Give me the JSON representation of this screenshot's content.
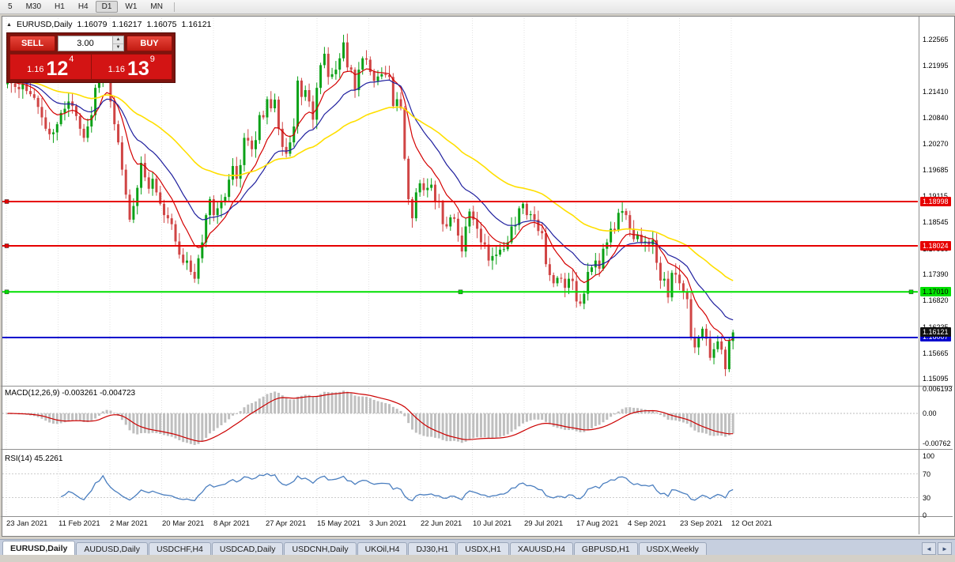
{
  "toolbar": {
    "timeframes": [
      "5",
      "M30",
      "H1",
      "H4",
      "D1",
      "W1",
      "MN"
    ],
    "active": "D1"
  },
  "chart_header": {
    "toggle_icon": "▲",
    "symbol": "EURUSD,Daily",
    "open": "1.16079",
    "high": "1.16217",
    "low": "1.16075",
    "close": "1.16121"
  },
  "trade_panel": {
    "sell_label": "SELL",
    "buy_label": "BUY",
    "volume": "3.00",
    "spin_up_icon": "▲",
    "spin_down_icon": "▼",
    "sell_price": {
      "base": "1.16",
      "big": "12",
      "sup": "4"
    },
    "buy_price": {
      "base": "1.16",
      "big": "13",
      "sup": "9"
    }
  },
  "price_axis": {
    "ticks": [
      "1.22565",
      "1.21995",
      "1.21410",
      "1.20840",
      "1.20270",
      "1.19685",
      "1.19115",
      "1.18545",
      "1.17960",
      "1.17390",
      "1.16820",
      "1.16235",
      "1.15665",
      "1.15095"
    ]
  },
  "levels": [
    {
      "label": "1.18998",
      "price": 1.18998,
      "line_color": "#e60000",
      "text_color": "#ffffff",
      "handles": [
        "left"
      ]
    },
    {
      "label": "1.18024",
      "price": 1.18024,
      "line_color": "#e60000",
      "text_color": "#ffffff",
      "handles": [
        "left"
      ]
    },
    {
      "label": "1.17010",
      "price": 1.1701,
      "line_color": "#00df00",
      "text_color": "#000000",
      "handles": [
        "left",
        "center",
        "right"
      ]
    },
    {
      "label": "1.16007",
      "price": 1.16007,
      "line_color": "#0000cd",
      "text_color": "#ffffff",
      "handles": []
    }
  ],
  "current_price_marker": {
    "label": "1.16121",
    "price": 1.16121,
    "bg": "#111111",
    "text_color": "#ffffff"
  },
  "indicators": {
    "macd": {
      "label": "MACD(12,26,9) -0.003261 -0.004723",
      "ticks": [
        "0.006193",
        "0.00",
        "-0.00762"
      ],
      "fast": 12,
      "slow": 26,
      "signal": 9,
      "histogram_color": "#bfbfbf",
      "signal_color": "#cc0000"
    },
    "rsi": {
      "label": "RSI(14) 45.2261",
      "ticks": [
        "100",
        "70",
        "30",
        "0"
      ],
      "period": 14,
      "levels": [
        70,
        30
      ],
      "line_color": "#4a7ebf"
    }
  },
  "time_axis": {
    "labels": [
      "23 Jan 2021",
      "11 Feb 2021",
      "2 Mar 2021",
      "20 Mar 2021",
      "8 Apr 2021",
      "27 Apr 2021",
      "15 May 2021",
      "3 Jun 2021",
      "22 Jun 2021",
      "10 Jul 2021",
      "29 Jul 2021",
      "17 Aug 2021",
      "4 Sep 2021",
      "23 Sep 2021",
      "12 Oct 2021"
    ]
  },
  "tab_bar": {
    "tabs": [
      {
        "label": "EURUSD,Daily",
        "active": true
      },
      {
        "label": "AUDUSD,Daily",
        "active": false
      },
      {
        "label": "USDCHF,H4",
        "active": false
      },
      {
        "label": "USDCAD,Daily",
        "active": false
      },
      {
        "label": "USDCNH,Daily",
        "active": false
      },
      {
        "label": "UKOil,H4",
        "active": false
      },
      {
        "label": "DJ30,H1",
        "active": false
      },
      {
        "label": "USDX,H1",
        "active": false
      },
      {
        "label": "XAUUSD,H4",
        "active": false
      },
      {
        "label": "GBPUSD,H1",
        "active": false
      },
      {
        "label": "USDX,Weekly",
        "active": false
      }
    ],
    "scroll_left_icon": "◄",
    "scroll_right_icon": "►"
  },
  "colors": {
    "candle_up": "#0ba117",
    "candle_down": "#d04545",
    "ma_fast": "#d40000",
    "ma_mid": "#1f1f9e",
    "ma_slow": "#ffdf00",
    "grid": "#e3e3e3",
    "frame": "#8f8f8f"
  },
  "chart_data": {
    "type": "candlestick",
    "symbol": "EURUSD",
    "timeframe": "Daily",
    "price_axis_range": [
      1.1496,
      1.2295
    ],
    "macd_axis_range": [
      -0.0095,
      0.0068
    ],
    "rsi_axis_range": [
      0,
      100
    ],
    "moving_averages": [
      {
        "period": 10,
        "color": "#d40000"
      },
      {
        "period": 21,
        "color": "#1f1f9e"
      },
      {
        "period": 55,
        "color": "#ffdf00"
      }
    ],
    "open0": 1.2158,
    "closes": [
      1.2165,
      1.216,
      1.2152,
      1.2147,
      1.2158,
      1.2143,
      1.2136,
      1.2128,
      1.2108,
      1.2085,
      1.206,
      1.2048,
      1.2052,
      1.207,
      1.2095,
      1.2104,
      1.212,
      1.211,
      1.2088,
      1.206,
      1.204,
      1.2065,
      1.209,
      1.215,
      1.217,
      1.224,
      1.2176,
      1.212,
      1.207,
      1.203,
      1.197,
      1.1915,
      1.186,
      1.189,
      1.193,
      1.1985,
      1.1953,
      1.1928,
      1.195,
      1.192,
      1.1895,
      1.187,
      1.1863,
      1.185,
      1.1812,
      1.1783,
      1.1765,
      1.177,
      1.1745,
      1.173,
      1.1775,
      1.181,
      1.187,
      1.1905,
      1.187,
      1.1885,
      1.1899,
      1.191,
      1.1948,
      1.1978,
      1.195,
      1.198,
      1.204,
      1.2034,
      1.2015,
      1.2035,
      1.209,
      1.2085,
      1.2125,
      1.2105,
      1.2124,
      1.206,
      1.202,
      1.2005,
      1.203,
      1.2065,
      1.2166,
      1.213,
      1.2145,
      1.212,
      1.208,
      1.215,
      1.22,
      1.2225,
      1.2174,
      1.218,
      1.219,
      1.2215,
      1.225,
      1.2195,
      1.219,
      1.2145,
      1.219,
      1.2215,
      1.2212,
      1.2185,
      1.2165,
      1.2175,
      1.218,
      1.2178,
      1.2174,
      1.211,
      1.2125,
      1.2105,
      1.1994,
      1.1905,
      1.1863,
      1.192,
      1.194,
      1.1925,
      1.193,
      1.1937,
      1.19,
      1.1898,
      1.185,
      1.1845,
      1.1865,
      1.1862,
      1.1825,
      1.179,
      1.1845,
      1.1878,
      1.186,
      1.184,
      1.181,
      1.1805,
      1.177,
      1.178,
      1.1783,
      1.1794,
      1.1795,
      1.181,
      1.1845,
      1.1848,
      1.1885,
      1.1895,
      1.187,
      1.1872,
      1.186,
      1.1835,
      1.183,
      1.1762,
      1.1738,
      1.172,
      1.1732,
      1.173,
      1.171,
      1.173,
      1.1725,
      1.168,
      1.1675,
      1.1697,
      1.1745,
      1.1755,
      1.177,
      1.1752,
      1.1796,
      1.181,
      1.184,
      1.1837,
      1.1875,
      1.1879,
      1.187,
      1.184,
      1.1817,
      1.1827,
      1.181,
      1.1812,
      1.1805,
      1.1815,
      1.1765,
      1.1726,
      1.173,
      1.1689,
      1.1743,
      1.1739,
      1.172,
      1.17,
      1.1685,
      1.1602,
      1.1579,
      1.1599,
      1.162,
      1.1598,
      1.1556,
      1.1575,
      1.1592,
      1.1574,
      1.1531,
      1.1593,
      1.1612
    ]
  }
}
